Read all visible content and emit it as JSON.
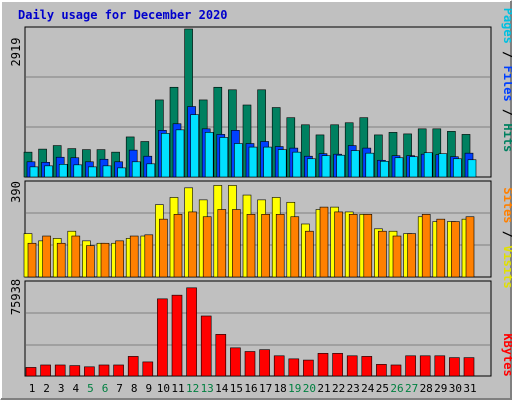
{
  "title": "Daily usage for December 2020",
  "colors": {
    "background": "#c0c0c0",
    "frame_light": "#ffffff",
    "frame_dark": "#808080",
    "title_text": "#0000cc",
    "hits": "#008060",
    "files": "#0040ff",
    "pages": "#00e0ff",
    "visits": "#ffff00",
    "sites": "#ff8000",
    "kbytes": "#ff0000",
    "weekend_label": "#008040",
    "weekday_label": "#000000"
  },
  "chart_data": [
    {
      "type": "bar",
      "panel": "top",
      "ymax_label": "2919",
      "ylim": [
        0,
        2919
      ],
      "grid": true,
      "legend": [
        {
          "label": "Pages",
          "color": "#00c0e0"
        },
        {
          "label": "/",
          "color": "#000000"
        },
        {
          "label": "Files",
          "color": "#0040ff"
        },
        {
          "label": "/",
          "color": "#000000"
        },
        {
          "label": "Hits",
          "color": "#008060"
        }
      ],
      "categories": [
        "1",
        "2",
        "3",
        "4",
        "5",
        "6",
        "7",
        "8",
        "9",
        "10",
        "11",
        "12",
        "13",
        "14",
        "15",
        "16",
        "17",
        "18",
        "19",
        "20",
        "21",
        "22",
        "23",
        "24",
        "25",
        "26",
        "27",
        "28",
        "29",
        "30",
        "31"
      ],
      "series": [
        {
          "name": "Hits",
          "values": [
            490,
            550,
            620,
            560,
            540,
            540,
            490,
            790,
            700,
            1520,
            1770,
            2919,
            1520,
            1770,
            1720,
            1420,
            1720,
            1370,
            1170,
            1030,
            830,
            1030,
            1070,
            1170,
            830,
            880,
            850,
            950,
            950,
            900,
            840
          ]
        },
        {
          "name": "Files",
          "values": [
            300,
            290,
            390,
            380,
            300,
            350,
            300,
            530,
            410,
            920,
            1050,
            1390,
            950,
            840,
            920,
            660,
            700,
            600,
            570,
            410,
            460,
            450,
            620,
            570,
            330,
            420,
            420,
            450,
            440,
            400,
            470
          ]
        },
        {
          "name": "Pages",
          "values": [
            200,
            220,
            250,
            240,
            200,
            220,
            180,
            300,
            260,
            860,
            930,
            1230,
            880,
            780,
            660,
            590,
            590,
            540,
            490,
            360,
            420,
            430,
            520,
            470,
            310,
            380,
            400,
            480,
            460,
            360,
            340
          ]
        }
      ]
    },
    {
      "type": "bar",
      "panel": "middle",
      "ymax_label": "390",
      "ylim": [
        0,
        390
      ],
      "grid": true,
      "legend": [
        {
          "label": "Sites",
          "color": "#ff8000"
        },
        {
          "label": "/",
          "color": "#000000"
        },
        {
          "label": "Visits",
          "color": "#e0e000"
        }
      ],
      "categories": [
        "1",
        "2",
        "3",
        "4",
        "5",
        "6",
        "7",
        "8",
        "9",
        "10",
        "11",
        "12",
        "13",
        "14",
        "15",
        "16",
        "17",
        "18",
        "19",
        "20",
        "21",
        "22",
        "23",
        "24",
        "25",
        "26",
        "27",
        "28",
        "29",
        "30",
        "31"
      ],
      "series": [
        {
          "name": "Visits",
          "values": [
            180,
            150,
            160,
            190,
            150,
            140,
            140,
            160,
            170,
            300,
            330,
            370,
            320,
            380,
            380,
            340,
            320,
            330,
            310,
            220,
            280,
            290,
            270,
            260,
            200,
            190,
            180,
            250,
            230,
            230,
            240
          ]
        },
        {
          "name": "Sites",
          "values": [
            140,
            170,
            140,
            170,
            130,
            140,
            150,
            170,
            175,
            240,
            260,
            270,
            250,
            280,
            280,
            260,
            260,
            260,
            250,
            190,
            290,
            270,
            260,
            260,
            190,
            170,
            180,
            260,
            240,
            230,
            250
          ]
        }
      ]
    },
    {
      "type": "bar",
      "panel": "bottom",
      "ymax_label": "75938",
      "ylim": [
        0,
        75938
      ],
      "grid": true,
      "legend": [
        {
          "label": "KBytes",
          "color": "#ff0000"
        }
      ],
      "categories": [
        "1",
        "2",
        "3",
        "4",
        "5",
        "6",
        "7",
        "8",
        "9",
        "10",
        "11",
        "12",
        "13",
        "14",
        "15",
        "16",
        "17",
        "18",
        "19",
        "20",
        "21",
        "22",
        "23",
        "24",
        "25",
        "26",
        "27",
        "28",
        "29",
        "30",
        "31"
      ],
      "series": [
        {
          "name": "KBytes",
          "values": [
            7000,
            9000,
            9000,
            8500,
            7500,
            9000,
            9000,
            16000,
            11500,
            63000,
            66000,
            72000,
            49000,
            34000,
            23000,
            20000,
            21500,
            16500,
            14000,
            13000,
            18500,
            18500,
            16500,
            16000,
            9500,
            9000,
            16500,
            16500,
            16500,
            15000,
            15000
          ]
        }
      ]
    }
  ],
  "x_labels": [
    {
      "label": "1",
      "weekend": false
    },
    {
      "label": "2",
      "weekend": false
    },
    {
      "label": "3",
      "weekend": false
    },
    {
      "label": "4",
      "weekend": false
    },
    {
      "label": "5",
      "weekend": true
    },
    {
      "label": "6",
      "weekend": true
    },
    {
      "label": "7",
      "weekend": false
    },
    {
      "label": "8",
      "weekend": false
    },
    {
      "label": "9",
      "weekend": false
    },
    {
      "label": "10",
      "weekend": false
    },
    {
      "label": "11",
      "weekend": false
    },
    {
      "label": "12",
      "weekend": true
    },
    {
      "label": "13",
      "weekend": true
    },
    {
      "label": "14",
      "weekend": false
    },
    {
      "label": "15",
      "weekend": false
    },
    {
      "label": "16",
      "weekend": false
    },
    {
      "label": "17",
      "weekend": false
    },
    {
      "label": "18",
      "weekend": false
    },
    {
      "label": "19",
      "weekend": true
    },
    {
      "label": "20",
      "weekend": true
    },
    {
      "label": "21",
      "weekend": false
    },
    {
      "label": "22",
      "weekend": false
    },
    {
      "label": "23",
      "weekend": false
    },
    {
      "label": "24",
      "weekend": false
    },
    {
      "label": "25",
      "weekend": false
    },
    {
      "label": "26",
      "weekend": true
    },
    {
      "label": "27",
      "weekend": true
    },
    {
      "label": "28",
      "weekend": false
    },
    {
      "label": "29",
      "weekend": false
    },
    {
      "label": "30",
      "weekend": false
    },
    {
      "label": "31",
      "weekend": false
    }
  ]
}
